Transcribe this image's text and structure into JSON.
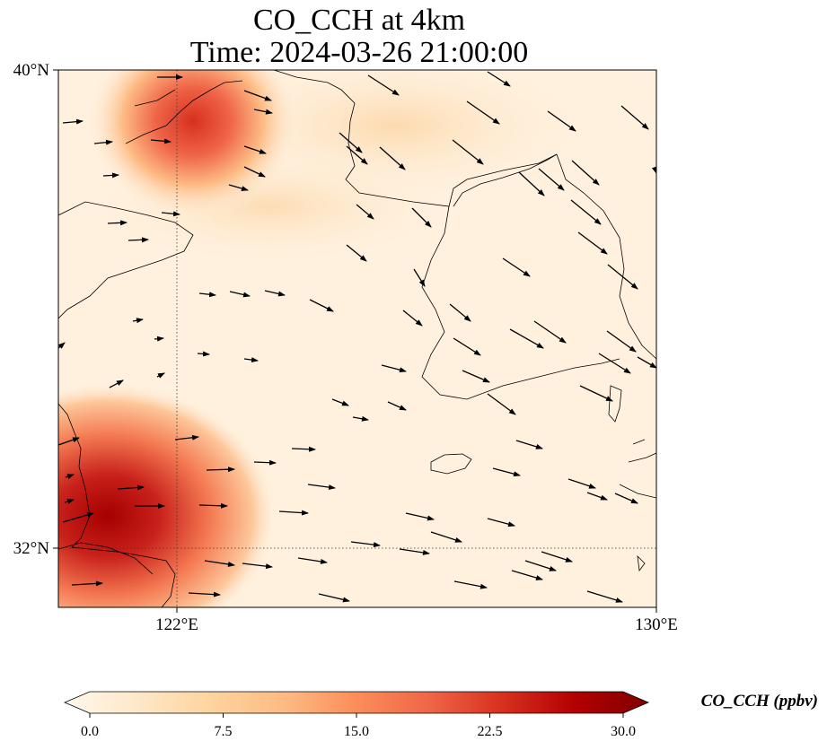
{
  "title": {
    "line1": "CO_CCH at 4km",
    "line2": "Time: 2024-03-26 21:00:00"
  },
  "map": {
    "lon_range": [
      120,
      130
    ],
    "lat_range": [
      31,
      40
    ],
    "lat_ticks": [
      {
        "value": 40,
        "label": "40°N"
      },
      {
        "value": 32,
        "label": "32°N"
      }
    ],
    "lon_ticks": [
      {
        "value": 122,
        "label": "122°E"
      },
      {
        "value": 130,
        "label": "130°E"
      }
    ],
    "gridlines": {
      "lon": [
        122
      ],
      "lat": [
        32
      ],
      "style": "dotted"
    },
    "field": "CO_CCH",
    "high_regions": [
      "north-west corner (Bohai / Liaodong)",
      "south-west corner (Yangtze delta)"
    ],
    "wind_vectors": "southeastward"
  },
  "colorbar": {
    "label": "CO_CCH (ppbv)",
    "min": 0.0,
    "max": 30.0,
    "ticks": [
      "0.0",
      "7.5",
      "15.0",
      "22.5",
      "30.0"
    ],
    "extend": "both",
    "colormap": "OrRd",
    "colors": [
      "#fff7ec",
      "#fee8c8",
      "#fdd49e",
      "#fdbb84",
      "#fc8d59",
      "#ef6548",
      "#d7301f",
      "#b30000",
      "#7f0000"
    ]
  }
}
